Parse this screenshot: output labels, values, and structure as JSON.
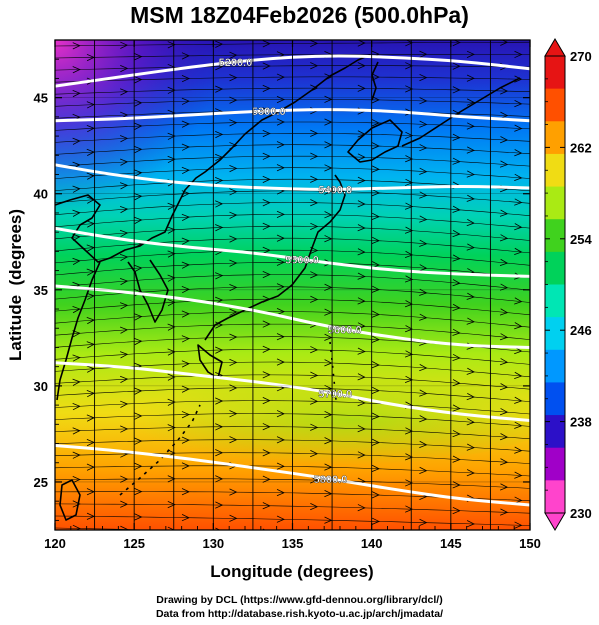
{
  "title": "MSM 18Z04Feb2026 (500.0hPa)",
  "xaxis": {
    "label": "Longitude (degrees)",
    "range": [
      120,
      150
    ],
    "ticks": [
      120,
      125,
      130,
      135,
      140,
      145,
      150
    ]
  },
  "yaxis": {
    "label": "Latitude  (degrees)",
    "range": [
      22.5,
      48
    ],
    "ticks": [
      25,
      30,
      35,
      40,
      45
    ]
  },
  "colorbar": {
    "range": [
      230,
      270
    ],
    "ticks": [
      "270",
      "262",
      "254",
      "246",
      "238",
      "230"
    ],
    "colors": [
      "#ff44cc",
      "#a000c8",
      "#2c10c8",
      "#0050f0",
      "#0098ff",
      "#00d0f0",
      "#00e6b4",
      "#00d25a",
      "#40d21e",
      "#aaea14",
      "#f0dc14",
      "#ffa000",
      "#ff5000",
      "#e61414"
    ]
  },
  "contours": [
    {
      "label": "5200.0",
      "lats": [
        45.6,
        46.1,
        46.6,
        47.0,
        47.2,
        47.1,
        46.9,
        46.5
      ]
    },
    {
      "label": "5300.0",
      "lats": [
        43.8,
        43.9,
        44.1,
        44.3,
        44.4,
        44.3,
        44.0,
        43.8
      ]
    },
    {
      "label": "5400.0",
      "lats": [
        41.5,
        40.9,
        40.5,
        40.3,
        40.2,
        40.3,
        40.4,
        40.3
      ]
    },
    {
      "label": "5500.0",
      "lats": [
        38.2,
        37.6,
        37.2,
        36.9,
        36.4,
        36.0,
        35.8,
        35.7
      ]
    },
    {
      "label": "5600.0",
      "lats": [
        35.2,
        34.9,
        34.5,
        33.9,
        33.1,
        32.5,
        32.1,
        32.0
      ]
    },
    {
      "label": "5700.0",
      "lats": [
        31.2,
        31.0,
        30.6,
        30.2,
        29.7,
        29.0,
        28.5,
        28.2
      ]
    },
    {
      "label": "5800.0",
      "lats": [
        26.9,
        26.6,
        26.2,
        25.7,
        25.2,
        24.6,
        24.1,
        23.8
      ]
    }
  ],
  "footer": {
    "line1": "Drawing by DCL (https://www.gfd-dennou.org/library/dcl/)",
    "line2": "Data from http://database.rish.kyoto-u.ac.jp/arch/jmadata/"
  }
}
